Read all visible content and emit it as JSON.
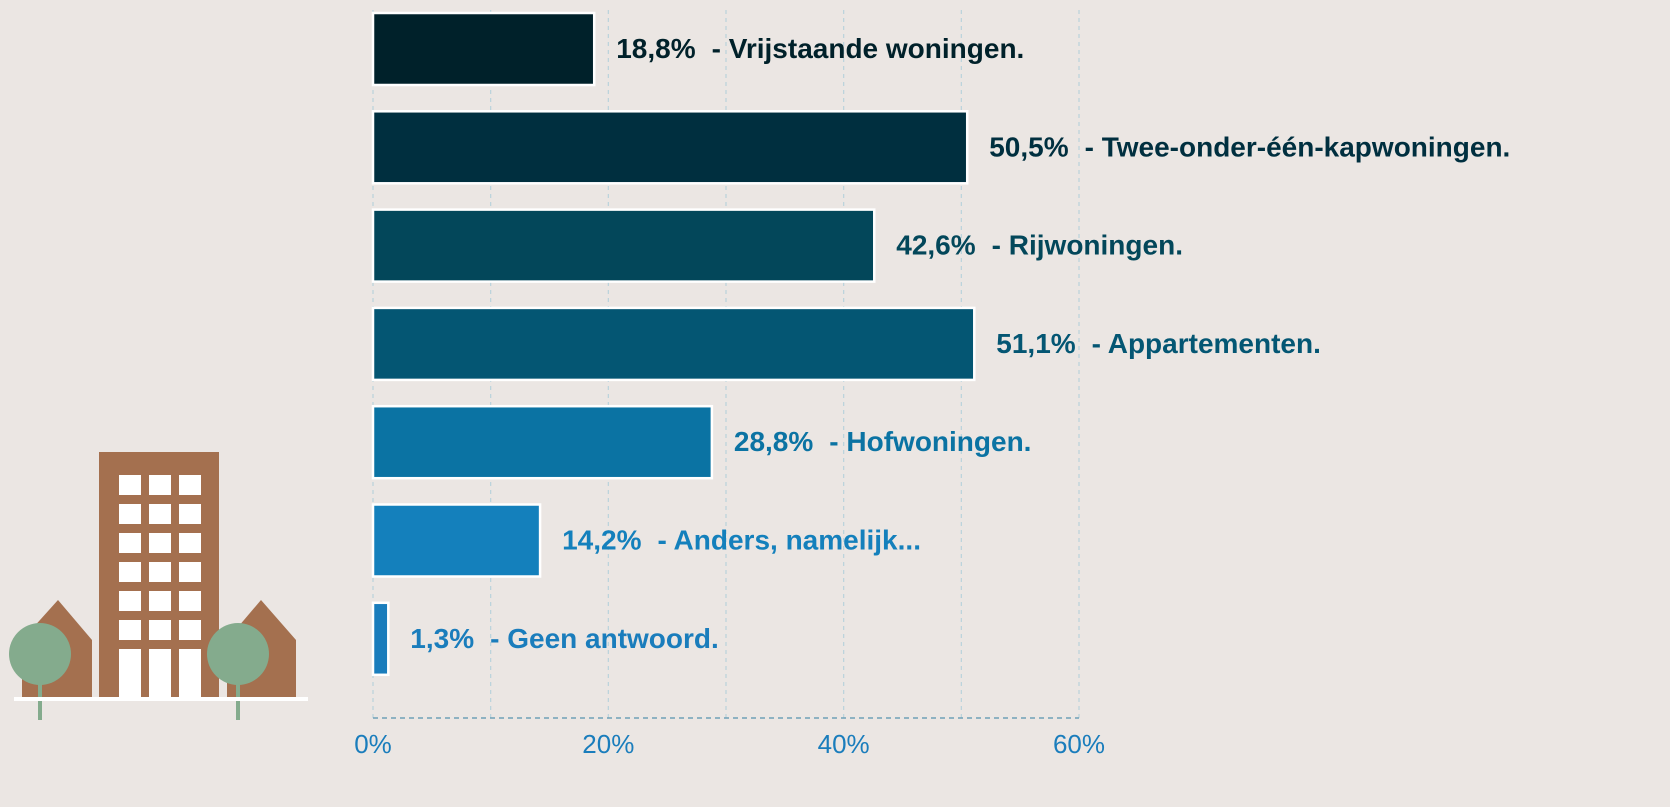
{
  "chart_data": {
    "type": "hbar",
    "categories": [
      "-  Vrijstaande woningen.",
      "- Twee-onder-één-kapwoningen.",
      "- Rijwoningen.",
      "- Appartementen.",
      "- Hofwoningen.",
      "- Anders, namelijk...",
      "- Geen antwoord."
    ],
    "values": [
      18.8,
      50.5,
      42.6,
      51.1,
      28.8,
      14.2,
      1.3
    ],
    "value_labels": [
      "18,8%",
      "50,5%",
      "42,6%",
      "51,1%",
      "28,8%",
      "14,2%",
      "1,3%"
    ],
    "colors": [
      "#00212a",
      "#002f3f",
      "#03475a",
      "#045673",
      "#0b73a3",
      "#1480bc",
      "#1a7dbc"
    ],
    "xlim": [
      0,
      60
    ],
    "xticks": [
      {
        "value": 0,
        "label": "0%"
      },
      {
        "value": 20,
        "label": "20%"
      },
      {
        "value": 40,
        "label": "40%"
      },
      {
        "value": 60,
        "label": "60%"
      }
    ],
    "minor_xticks": [
      10,
      30,
      50
    ],
    "grid": true
  }
}
